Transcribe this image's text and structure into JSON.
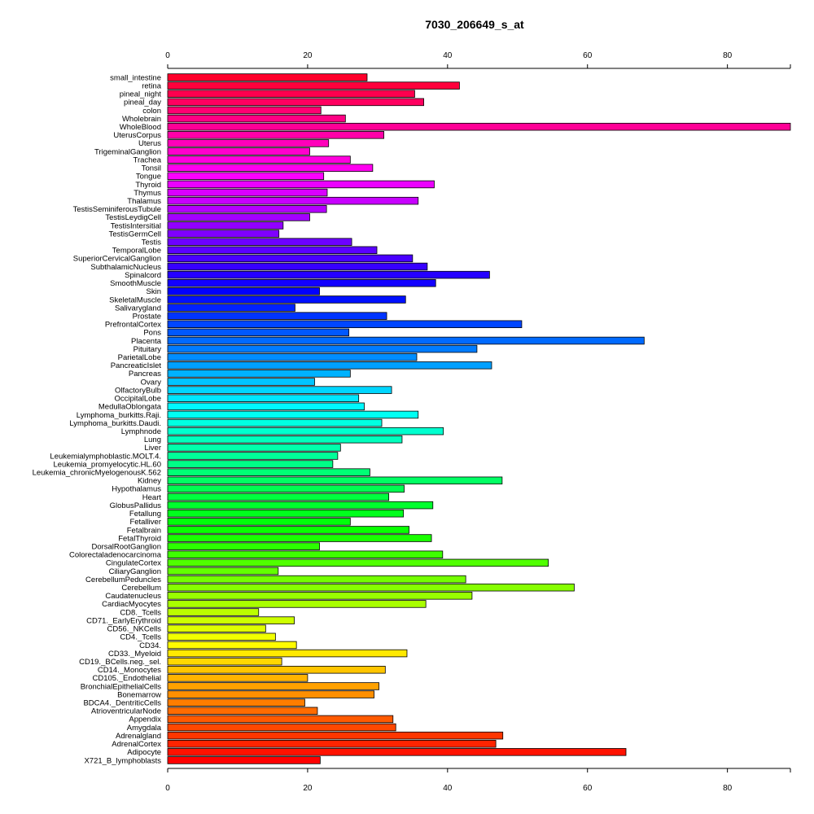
{
  "chart_data": {
    "type": "bar",
    "orientation": "horizontal",
    "title": "7030_206649_s_at",
    "xlabel": "",
    "ylabel": "",
    "xlim": [
      0,
      89
    ],
    "xticks": [
      0,
      20,
      40,
      60,
      80
    ],
    "grid": false,
    "legend": "none",
    "categories": [
      "small_intestine",
      "retina",
      "pineal_night",
      "pineal_day",
      "colon",
      "Wholebrain",
      "WholeBlood",
      "UterusCorpus",
      "Uterus",
      "TrigeminalGanglion",
      "Trachea",
      "Tonsil",
      "Tongue",
      "Thyroid",
      "Thymus",
      "Thalamus",
      "TestisSeminiferousTubule",
      "TestisLeydigCell",
      "TestisIntersitial",
      "TestisGermCell",
      "Testis",
      "TemporalLobe",
      "SuperiorCervicalGanglion",
      "SubthalamicNucleus",
      "Spinalcord",
      "SmoothMuscle",
      "Skin",
      "SkeletalMuscle",
      "Salivarygland",
      "Prostate",
      "PrefrontalCortex",
      "Pons",
      "Placenta",
      "Pituitary",
      "ParietalLobe",
      "PancreaticIslet",
      "Pancreas",
      "Ovary",
      "OlfactoryBulb",
      "OccipitalLobe",
      "MedullaOblongata",
      "Lymphoma_burkitts.Raji.",
      "Lymphoma_burkitts.Daudi.",
      "Lymphnode",
      "Lung",
      "Liver",
      "Leukemialymphoblastic.MOLT.4.",
      "Leukemia_promyelocytic.HL.60",
      "Leukemia_chronicMyelogenousK.562",
      "Kidney",
      "Hypothalamus",
      "Heart",
      "GlobusPallidus",
      "Fetallung",
      "Fetalliver",
      "Fetalbrain",
      "FetalThyroid",
      "DorsalRootGanglion",
      "Colorectaladenocarcinoma",
      "CingulateCortex",
      "CiliaryGanglion",
      "CerebellumPeduncles",
      "Cerebellum",
      "Caudatenucleus",
      "CardiacMyocytes",
      "CD8._Tcells",
      "CD71._EarlyErythroid",
      "CD56._NKCells",
      "CD4._Tcells",
      "CD34.",
      "CD33._Myeloid",
      "CD19._BCells.neg._sel.",
      "CD14._Monocytes",
      "CD105._Endothelial",
      "BronchialEpithelialCells",
      "Bonemarrow",
      "BDCA4._DentriticCells",
      "AtrioventricularNode",
      "Appendix",
      "Amygdala",
      "Adrenalgland",
      "AdrenalCortex",
      "Adipocyte",
      "X721_B_lymphoblasts"
    ],
    "values": [
      28.5,
      41.7,
      35.3,
      36.6,
      21.9,
      25.4,
      89.0,
      30.9,
      23.0,
      20.3,
      26.1,
      29.3,
      22.3,
      38.1,
      22.8,
      35.8,
      22.7,
      20.3,
      16.5,
      15.9,
      26.3,
      29.9,
      35.0,
      37.1,
      46.0,
      38.3,
      21.7,
      34.0,
      18.2,
      31.3,
      50.6,
      25.9,
      68.1,
      44.2,
      35.6,
      46.3,
      26.1,
      21.0,
      32.0,
      27.3,
      28.1,
      35.8,
      30.6,
      39.4,
      33.5,
      24.7,
      24.3,
      23.6,
      28.9,
      47.8,
      33.8,
      31.6,
      37.9,
      33.7,
      26.1,
      34.5,
      37.7,
      21.7,
      39.3,
      54.4,
      15.8,
      42.6,
      58.1,
      43.5,
      36.9,
      13.0,
      18.1,
      14.0,
      15.4,
      18.4,
      34.2,
      16.3,
      31.1,
      20.0,
      30.2,
      29.5,
      19.6,
      21.4,
      32.2,
      32.6,
      47.9,
      46.9,
      65.5,
      21.8
    ]
  }
}
